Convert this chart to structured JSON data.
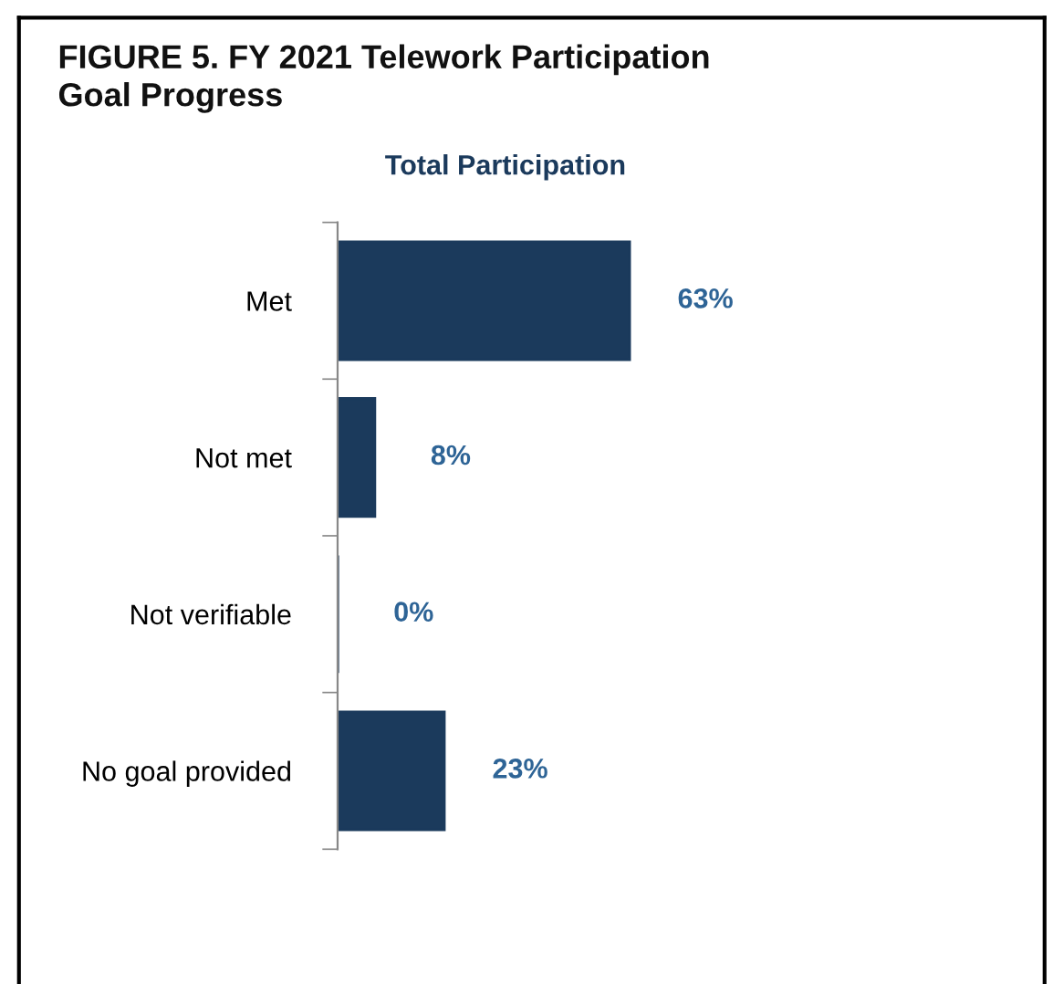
{
  "chart_data": {
    "type": "bar",
    "orientation": "horizontal",
    "title": "FIGURE 5. FY 2021 Telework Participation\nGoal Progress",
    "subtitle": "Total Participation",
    "categories": [
      "Met",
      "Not met",
      "Not verifiable",
      "No goal provided"
    ],
    "values": [
      63,
      8,
      0,
      23
    ],
    "value_labels": [
      "63%",
      "8%",
      "0%",
      "23%"
    ],
    "color": "#1b3a5c",
    "tick_labels": "y",
    "grid": false,
    "legend": false
  }
}
